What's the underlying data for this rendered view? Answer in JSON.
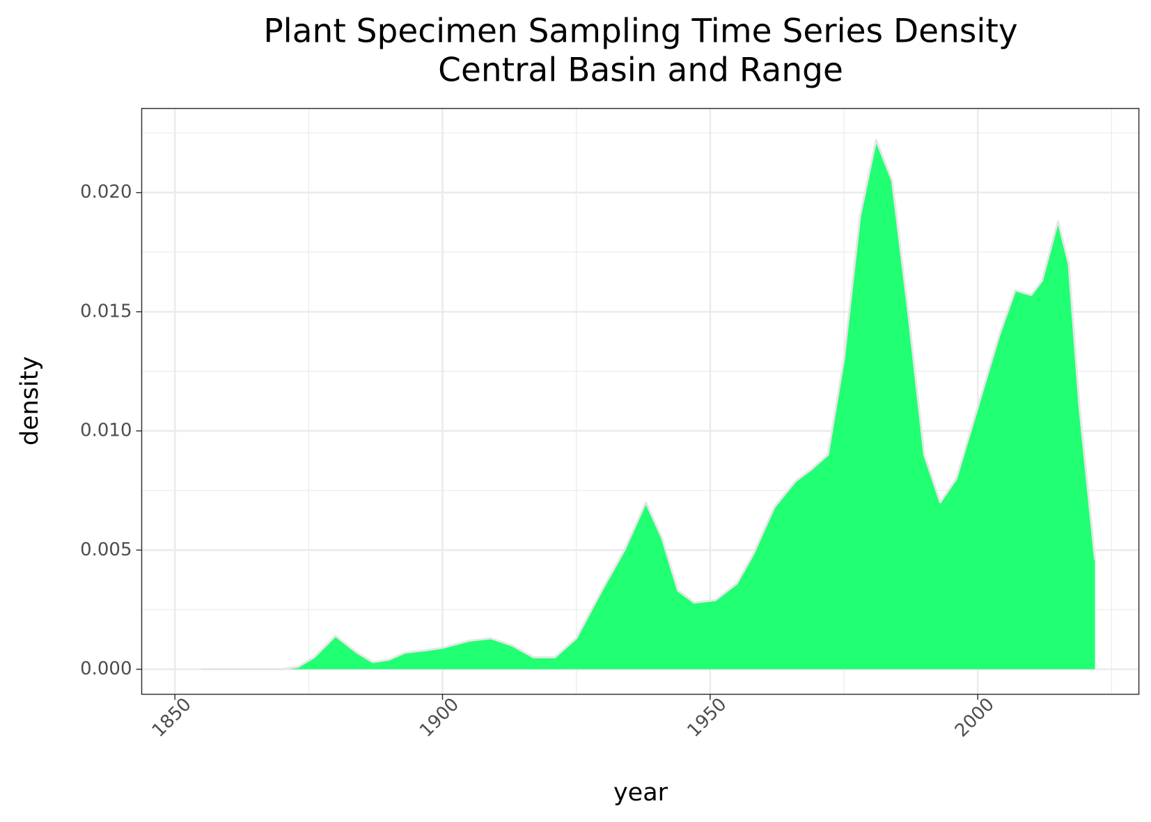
{
  "chart_data": {
    "type": "area",
    "title": "Plant Specimen Sampling Time Series Density",
    "subtitle": "Central Basin and Range",
    "x_label": "year",
    "y_label": "density",
    "x": [
      1855,
      1870,
      1873,
      1876,
      1880,
      1884,
      1887,
      1890,
      1893,
      1897,
      1900,
      1905,
      1909,
      1913,
      1917,
      1921,
      1925,
      1930,
      1934,
      1938,
      1941,
      1944,
      1947,
      1951,
      1955,
      1958,
      1962,
      1966,
      1969,
      1972,
      1975,
      1978,
      1981,
      1984,
      1987,
      1990,
      1993,
      1996,
      2000,
      2004,
      2007,
      2010,
      2012,
      2015,
      2017,
      2019,
      2021.9
    ],
    "values": [
      0,
      0,
      0.0001,
      0.0005,
      0.0014,
      0.0007,
      0.0003,
      0.0004,
      0.0007,
      0.0008,
      0.0009,
      0.0012,
      0.0013,
      0.001,
      0.0005,
      0.0005,
      0.0013,
      0.0034,
      0.005,
      0.007,
      0.0055,
      0.0033,
      0.0028,
      0.0029,
      0.0036,
      0.0048,
      0.0068,
      0.0079,
      0.0084,
      0.009,
      0.013,
      0.019,
      0.0222,
      0.0205,
      0.015,
      0.009,
      0.007,
      0.008,
      0.011,
      0.014,
      0.0159,
      0.0157,
      0.0163,
      0.0188,
      0.017,
      0.011,
      0.0046
    ],
    "color": "#21ff73",
    "outline_color": "#e6e6e6",
    "xlim": [
      1843.8,
      2030.1
    ],
    "ylim": [
      -0.00105,
      0.02353
    ],
    "xticks": [
      1850,
      1900,
      1950,
      2000
    ],
    "yticks": [
      {
        "value": 0,
        "label": "0.000"
      },
      {
        "value": 0.005,
        "label": "0.005"
      },
      {
        "value": 0.01,
        "label": "0.010"
      },
      {
        "value": 0.015,
        "label": "0.015"
      },
      {
        "value": 0.02,
        "label": "0.020"
      }
    ],
    "x_minor_ticks": [
      1875,
      1925,
      1975,
      2025
    ],
    "y_minor_ticks": [
      0.0025,
      0.0075,
      0.0125,
      0.0175,
      0.0225
    ],
    "grid": true
  }
}
